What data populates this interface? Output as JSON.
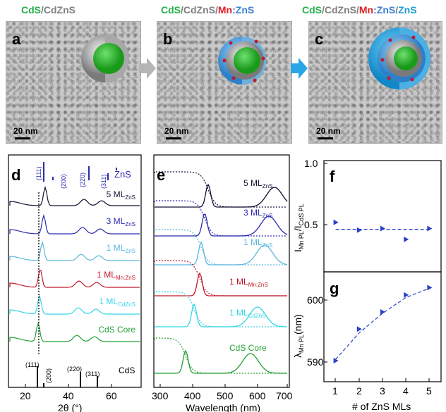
{
  "titles": {
    "a": [
      {
        "t": "CdS",
        "c": "#22b14c"
      },
      {
        "t": "/CdZnS",
        "c": "#808080"
      }
    ],
    "b": [
      {
        "t": "CdS",
        "c": "#22b14c"
      },
      {
        "t": "/CdZnS/",
        "c": "#808080"
      },
      {
        "t": "Mn",
        "c": "#e0202a"
      },
      {
        "t": ":ZnS",
        "c": "#3b7fd6"
      }
    ],
    "c": [
      {
        "t": "CdS",
        "c": "#22b14c"
      },
      {
        "t": "/CdZnS/",
        "c": "#808080"
      },
      {
        "t": "Mn",
        "c": "#e0202a"
      },
      {
        "t": ":ZnS",
        "c": "#3b7fd6"
      },
      {
        "t": "/",
        "c": "#808080"
      },
      {
        "t": "ZnS",
        "c": "#1e9ad6"
      }
    ]
  },
  "panels": {
    "a": "a",
    "b": "b",
    "c": "c",
    "d": "d",
    "e": "e",
    "f": "f",
    "g": "g"
  },
  "scale_bar": "20 nm",
  "panel_d": {
    "xlabel": "2θ (°)",
    "xticks": [
      "20",
      "40",
      "60"
    ],
    "zns_label": "ZnS",
    "zns_peaks": [
      "(111)",
      "(200)",
      "(220)",
      "(311)"
    ],
    "cds_label": "CdS",
    "cds_peaks": [
      "(111)",
      "(200)",
      "(220)",
      "(311)"
    ],
    "traces": [
      {
        "main": "5 ML",
        "sub": "ZnS",
        "color": "#111133"
      },
      {
        "main": "3 ML",
        "sub": "ZnS",
        "color": "#2a2ab0"
      },
      {
        "main": "1 ML",
        "sub": "ZnS",
        "color": "#5ab8e0"
      },
      {
        "main": "1 ML",
        "sub": "Mn:ZnS",
        "color": "#c0182a"
      },
      {
        "main": "1 ML",
        "sub": "CdZnS",
        "color": "#33d6e6"
      },
      {
        "main": "CdS Core",
        "sub": "",
        "color": "#22a034"
      }
    ]
  },
  "panel_e": {
    "xlabel": "Wavelength (nm)",
    "xticks": [
      "300",
      "400",
      "500",
      "600",
      "700"
    ]
  },
  "panel_f": {
    "ylabel_main": "I",
    "ylabel_sub1": "Mn PL",
    "ylabel_mid": "/I",
    "ylabel_sub2": "CdS PL",
    "yticks": [
      "1.0",
      "0.5"
    ]
  },
  "panel_g": {
    "ylabel_main": "λ",
    "ylabel_sub": "Mn PL",
    "ylabel_unit": "(nm)",
    "yticks": [
      "600",
      "590"
    ],
    "xlabel": "# of ZnS MLs",
    "xticks": [
      "1",
      "2",
      "3",
      "4",
      "5"
    ]
  },
  "chart_data": [
    {
      "type": "scatter",
      "panel": "f",
      "x": [
        1,
        2,
        3,
        4,
        5
      ],
      "y": [
        0.62,
        0.57,
        0.58,
        0.51,
        0.58
      ],
      "fit": 0.575,
      "ylim": [
        0.3,
        1.02
      ],
      "xlim": [
        0.5,
        5.5
      ],
      "color": "#2a40c8"
    },
    {
      "type": "scatter",
      "panel": "g",
      "x": [
        1,
        2,
        3,
        4,
        5
      ],
      "y": [
        590,
        594.8,
        597.4,
        600,
        601.1
      ],
      "fit": [
        590.2,
        594.2,
        597.2,
        599.6,
        601.0
      ],
      "ylim": [
        586.8,
        603.5
      ],
      "xlim": [
        0.5,
        5.5
      ],
      "color": "#2a40c8"
    }
  ]
}
